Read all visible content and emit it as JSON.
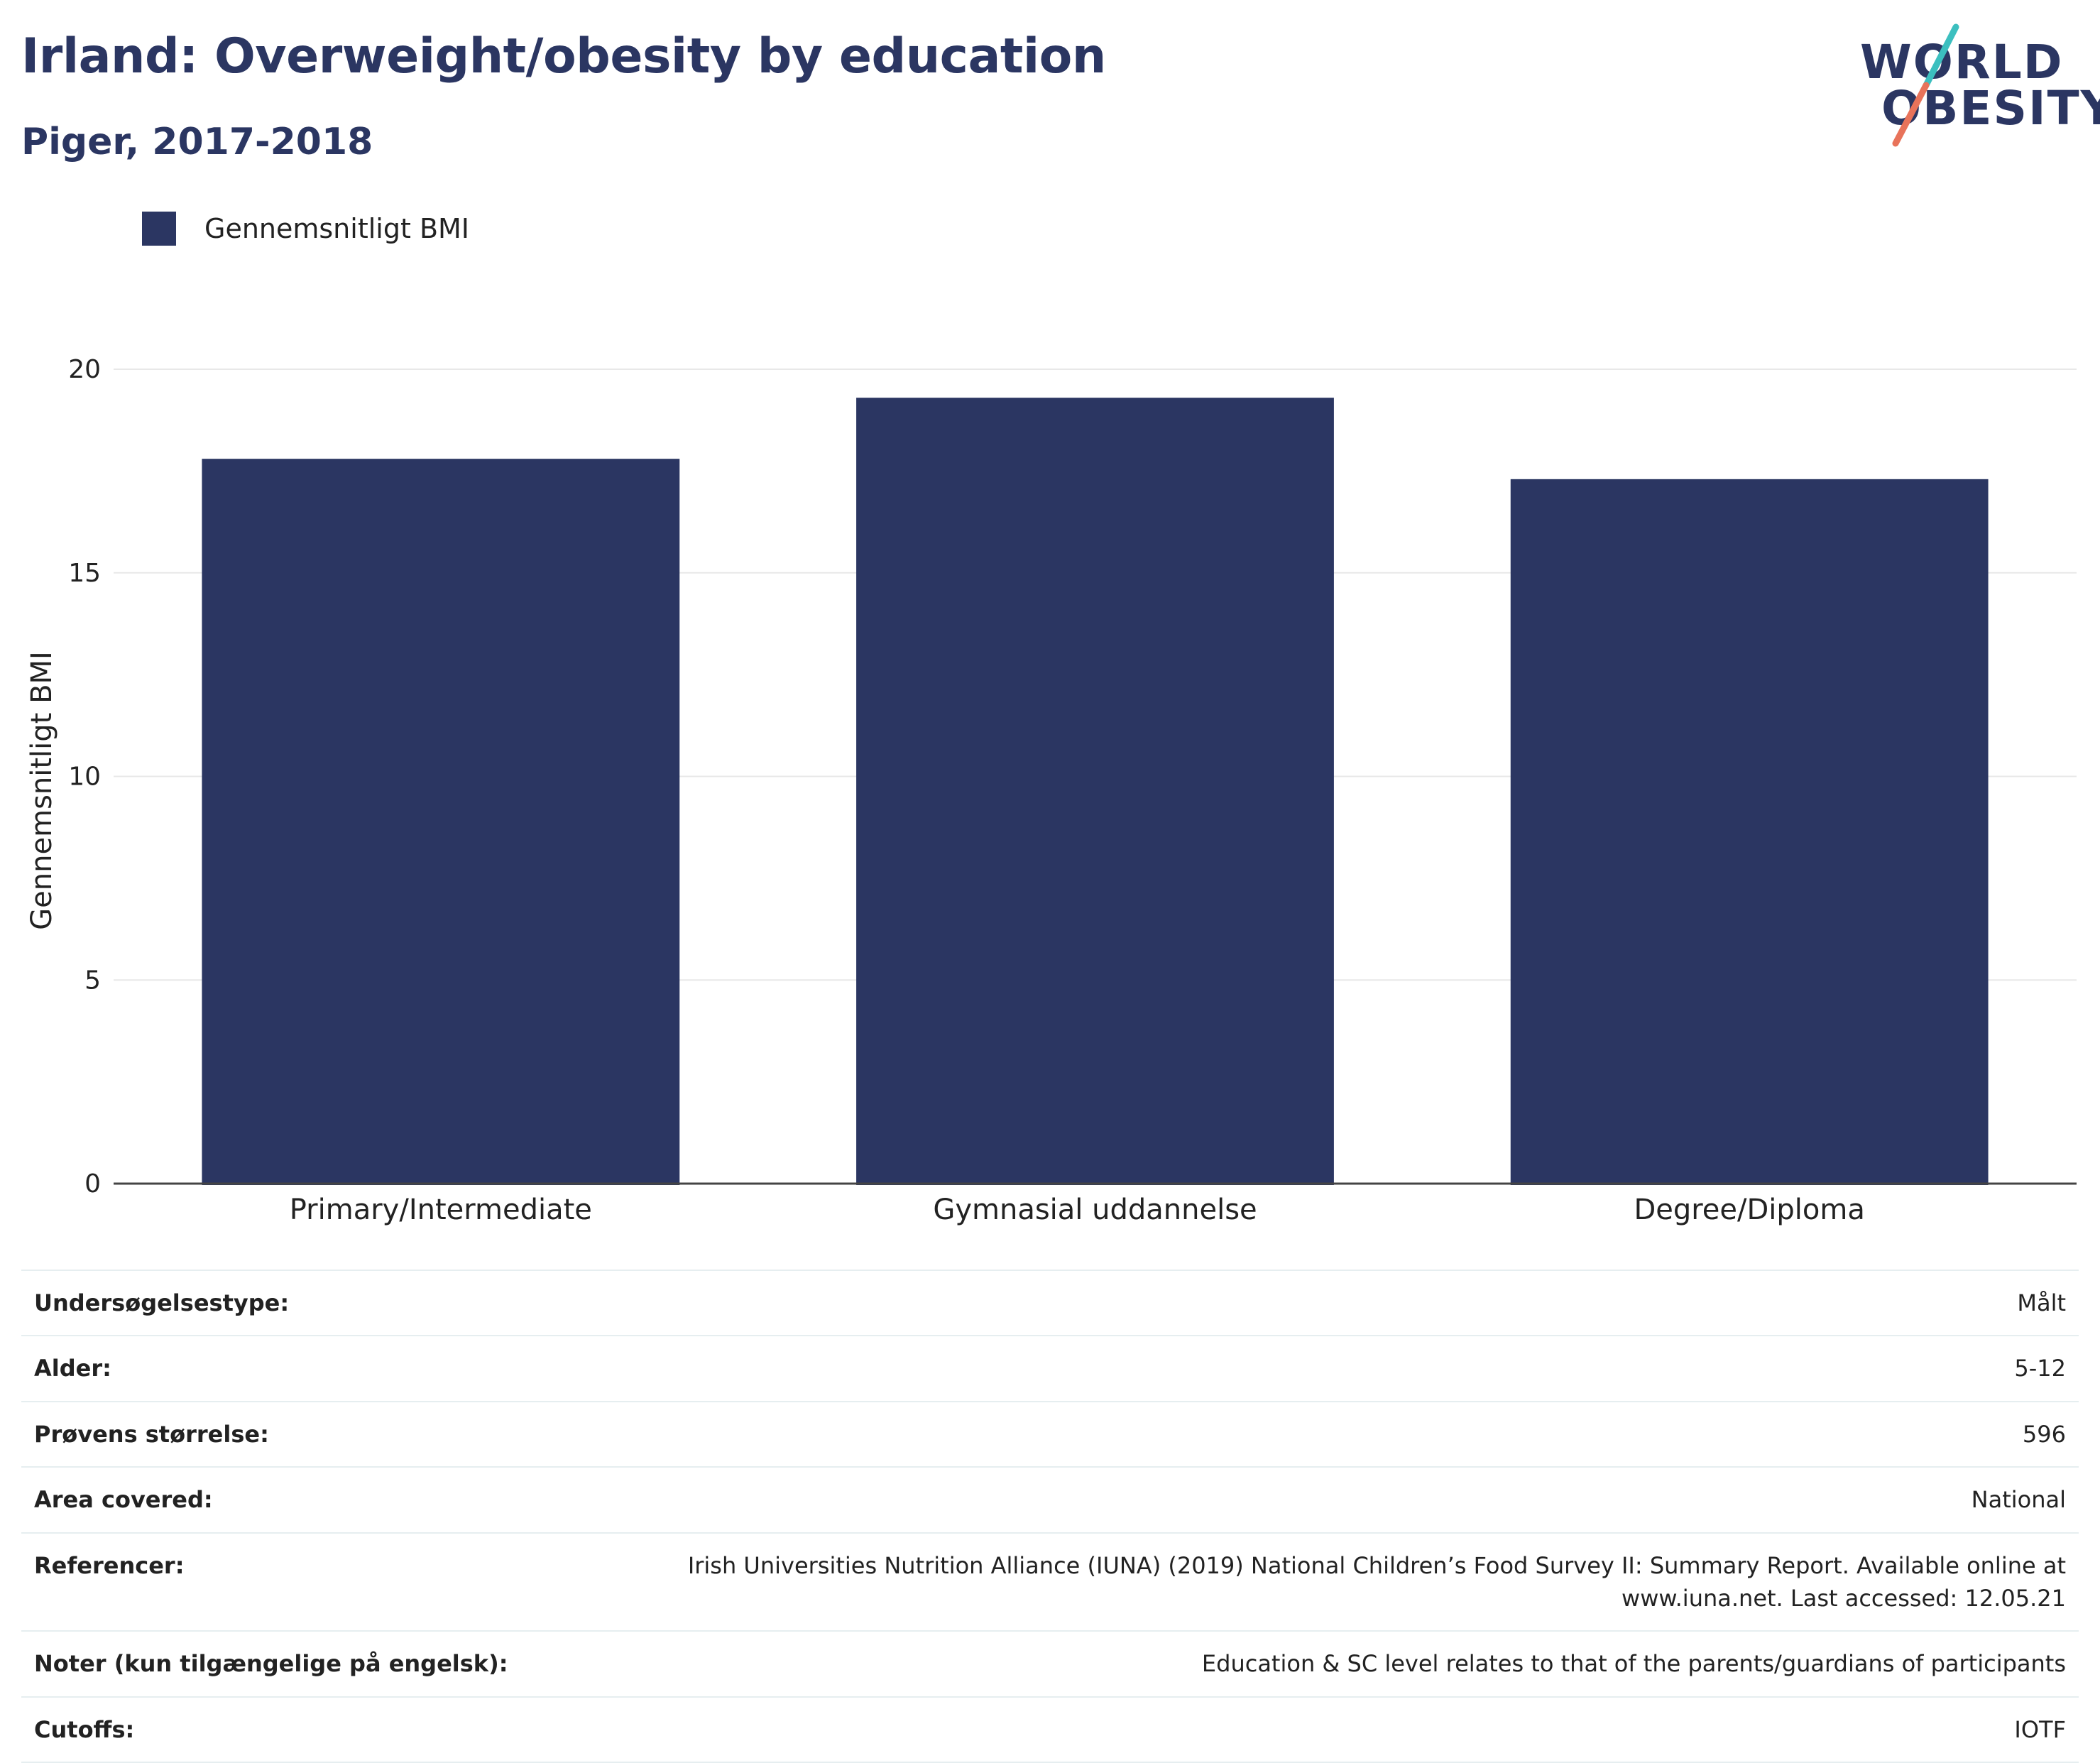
{
  "header": {
    "title": "Irland: Overweight/obesity by education",
    "subtitle": "Piger, 2017-2018"
  },
  "logo": {
    "line1": "WORLD",
    "line2": "OBESITY",
    "colors": {
      "text": "#2b3662",
      "slash_top": "#3cbfbf",
      "slash_bottom": "#e8735a"
    }
  },
  "legend": {
    "label": "Gennemsnitligt BMI",
    "color": "#2b3662"
  },
  "chart_data": {
    "type": "bar",
    "categories": [
      "Primary/Intermediate",
      "Gymnasial uddannelse",
      "Degree/Diploma"
    ],
    "series": [
      {
        "name": "Gennemsnitligt BMI",
        "values": [
          17.8,
          19.3,
          17.3
        ],
        "color": "#2b3662"
      }
    ],
    "ylabel": "Gennemsnitligt BMI",
    "xlabel": "",
    "ylim": [
      0,
      20
    ],
    "yticks": [
      0,
      5,
      10,
      15,
      20
    ],
    "grid": true,
    "legend_position": "top-left"
  },
  "info": [
    {
      "key": "Undersøgelsestype:",
      "value": "Målt"
    },
    {
      "key": "Alder:",
      "value": "5-12"
    },
    {
      "key": "Prøvens størrelse:",
      "value": "596"
    },
    {
      "key": "Area covered:",
      "value": "National"
    },
    {
      "key": "Referencer:",
      "value": "Irish Universities Nutrition Alliance (IUNA) (2019) National Children’s Food Survey II: Summary Report. Available online at www.iuna.net. Last accessed: 12.05.21"
    },
    {
      "key": "Noter (kun tilgængelige på engelsk):",
      "value": "Education & SC level relates to that of the parents/guardians of participants"
    },
    {
      "key": "Cutoffs:",
      "value": "IOTF"
    }
  ]
}
